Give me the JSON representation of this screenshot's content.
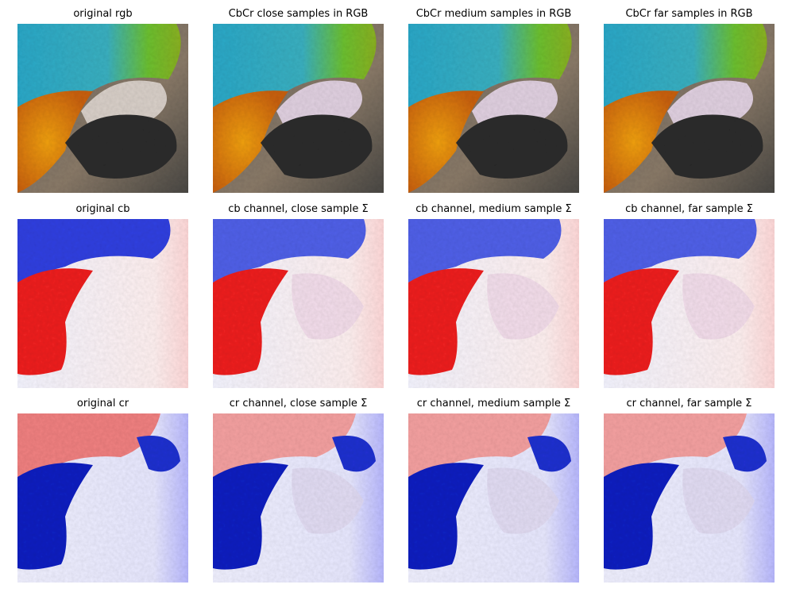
{
  "panels": [
    {
      "title": "original rgb"
    },
    {
      "title": "CbCr close samples in RGB"
    },
    {
      "title": "CbCr medium samples in RGB"
    },
    {
      "title": "CbCr far samples in RGB"
    },
    {
      "title": "original cb"
    },
    {
      "title": "cb channel, close sample Σ"
    },
    {
      "title": "cb channel, medium sample Σ"
    },
    {
      "title": "cb channel, far sample Σ"
    },
    {
      "title": "original cr"
    },
    {
      "title": "cr channel, close sample Σ"
    },
    {
      "title": "cr channel, medium sample Σ"
    },
    {
      "title": "cr channel, far sample Σ"
    }
  ]
}
